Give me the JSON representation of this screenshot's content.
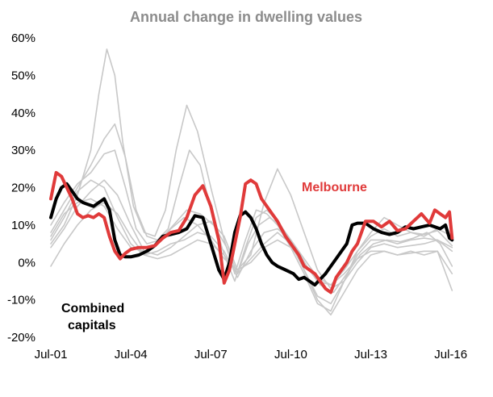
{
  "chart_data": {
    "type": "line",
    "title": "Annual change in dwelling values",
    "xlabel": "",
    "ylabel": "",
    "x_tick_labels": [
      "Jul-01",
      "Jul-04",
      "Jul-07",
      "Jul-10",
      "Jul-13",
      "Jul-16"
    ],
    "y_tick_labels": [
      "60%",
      "50%",
      "40%",
      "30%",
      "20%",
      "10%",
      "0%",
      "-10%",
      "-20%"
    ],
    "y_ticks": [
      60,
      50,
      40,
      30,
      20,
      10,
      0,
      -10,
      -20
    ],
    "xlim": [
      2001.5,
      2016.6
    ],
    "ylim": [
      -20,
      60
    ],
    "grid": false,
    "annotations": {
      "melbourne": "Melbourne",
      "combined_line1": "Combined",
      "combined_line2": "capitals"
    },
    "colors": {
      "melbourne": "#e03a3a",
      "combined": "#000000",
      "other": "#c8c8c8",
      "title": "#8c8c8c"
    },
    "series": [
      {
        "name": "Melbourne",
        "highlight": "melbourne",
        "x": [
          2001.5,
          2001.7,
          2001.9,
          2002.1,
          2002.3,
          2002.5,
          2002.7,
          2002.9,
          2003.1,
          2003.3,
          2003.5,
          2003.7,
          2003.9,
          2004.1,
          2004.3,
          2004.5,
          2004.8,
          2005.1,
          2005.4,
          2005.7,
          2006.0,
          2006.3,
          2006.6,
          2006.9,
          2007.2,
          2007.5,
          2007.8,
          2008.0,
          2008.2,
          2008.4,
          2008.6,
          2008.8,
          2009.0,
          2009.2,
          2009.4,
          2009.6,
          2009.8,
          2010.0,
          2010.3,
          2010.6,
          2010.8,
          2011.0,
          2011.2,
          2011.4,
          2011.6,
          2011.8,
          2012.0,
          2012.2,
          2012.4,
          2012.6,
          2012.8,
          2013.0,
          2013.3,
          2013.6,
          2013.9,
          2014.2,
          2014.5,
          2014.8,
          2015.1,
          2015.4,
          2015.7,
          2015.9,
          2016.1,
          2016.3,
          2016.45,
          2016.55
        ],
        "y": [
          17,
          24,
          23,
          20,
          17,
          13,
          12,
          12.5,
          12,
          13,
          12,
          7,
          3,
          1,
          2.5,
          3.5,
          4,
          4,
          4.5,
          6.5,
          8,
          8.5,
          12,
          18,
          20.5,
          15,
          6,
          -5.5,
          -2,
          5,
          12,
          21,
          22,
          21,
          17,
          15,
          13,
          11,
          7,
          4,
          2,
          -1,
          -2,
          -3,
          -5,
          -7,
          -8,
          -4,
          -2,
          0,
          3,
          5,
          11,
          11,
          9.5,
          11,
          8.5,
          9,
          11,
          13,
          10.5,
          14,
          13,
          12,
          13.5,
          6.5
        ]
      },
      {
        "name": "Combined capitals",
        "highlight": "combined",
        "x": [
          2001.5,
          2001.7,
          2001.9,
          2002.1,
          2002.3,
          2002.5,
          2002.7,
          2002.9,
          2003.1,
          2003.3,
          2003.5,
          2003.7,
          2003.9,
          2004.1,
          2004.3,
          2004.5,
          2004.8,
          2005.1,
          2005.4,
          2005.7,
          2006.0,
          2006.3,
          2006.6,
          2006.9,
          2007.2,
          2007.5,
          2007.8,
          2008.0,
          2008.2,
          2008.4,
          2008.6,
          2008.8,
          2009.0,
          2009.2,
          2009.4,
          2009.6,
          2009.8,
          2010.0,
          2010.3,
          2010.6,
          2010.8,
          2011.0,
          2011.2,
          2011.4,
          2011.6,
          2011.8,
          2012.0,
          2012.2,
          2012.4,
          2012.6,
          2012.8,
          2013.0,
          2013.3,
          2013.6,
          2013.9,
          2014.2,
          2014.5,
          2014.8,
          2015.1,
          2015.4,
          2015.7,
          2015.9,
          2016.1,
          2016.3,
          2016.45,
          2016.55
        ],
        "y": [
          12,
          17,
          20,
          21,
          19,
          17,
          16,
          15.5,
          15,
          16,
          17,
          14,
          6,
          2,
          1.5,
          1.5,
          2,
          3,
          4.5,
          7,
          7.5,
          8,
          9,
          12.5,
          12,
          5,
          -2,
          -4.5,
          0,
          8,
          12.5,
          13.5,
          12,
          9,
          5,
          2,
          0,
          -1,
          -2,
          -3,
          -4.5,
          -4,
          -5,
          -6,
          -4.5,
          -3,
          -1,
          1,
          3,
          5,
          10,
          10.5,
          10.5,
          9,
          8,
          7.5,
          8,
          9.5,
          9,
          9.5,
          10,
          9.5,
          9,
          10,
          6.5,
          6
        ]
      },
      {
        "name": "",
        "highlight": "other",
        "x": [
          2001.5,
          2002.0,
          2002.5,
          2003.0,
          2003.3,
          2003.6,
          2003.9,
          2004.2,
          2004.6,
          2005.0,
          2005.4,
          2005.8,
          2006.2,
          2006.6,
          2007.0,
          2007.5,
          2008.0,
          2008.4,
          2008.8,
          2009.2,
          2009.6,
          2010.0,
          2010.5,
          2011.0,
          2011.5,
          2012.0,
          2012.5,
          2013.0,
          2013.5,
          2014.0,
          2014.5,
          2015.0,
          2015.5,
          2016.0,
          2016.55
        ],
        "y": [
          5,
          10,
          18,
          30,
          45,
          57,
          50,
          32,
          15,
          8,
          7,
          14,
          30,
          42,
          35,
          20,
          6,
          -3,
          6,
          14,
          13,
          10,
          4,
          -3,
          -11,
          -13,
          -5,
          3,
          7,
          9,
          7,
          8,
          7.5,
          8.5,
          4.5
        ]
      },
      {
        "name": "",
        "highlight": "other",
        "x": [
          2001.5,
          2002.0,
          2002.5,
          2003.0,
          2003.5,
          2003.9,
          2004.3,
          2004.7,
          2005.1,
          2005.5,
          2005.9,
          2006.3,
          2006.7,
          2007.1,
          2007.5,
          2008.0,
          2008.4,
          2008.8,
          2009.2,
          2009.6,
          2010.0,
          2010.5,
          2011.0,
          2011.5,
          2012.0,
          2012.5,
          2013.0,
          2013.5,
          2014.0,
          2014.5,
          2015.0,
          2015.5,
          2016.0,
          2016.55
        ],
        "y": [
          8,
          14,
          20,
          26,
          33,
          37,
          28,
          14,
          7,
          6,
          9,
          20,
          30,
          26,
          14,
          2,
          -5,
          4,
          12,
          14,
          11,
          6,
          -2,
          -9,
          -11,
          -5,
          2,
          6,
          6,
          5,
          6,
          6.5,
          6,
          4
        ]
      },
      {
        "name": "",
        "highlight": "other",
        "x": [
          2001.5,
          2002.0,
          2002.5,
          2003.0,
          2003.5,
          2003.9,
          2004.3,
          2004.7,
          2005.1,
          2005.6,
          2006.1,
          2006.6,
          2007.1,
          2007.6,
          2008.1,
          2008.5,
          2008.9,
          2009.3,
          2009.7,
          2010.1,
          2010.6,
          2011.1,
          2011.6,
          2012.1,
          2012.6,
          2013.1,
          2013.6,
          2014.1,
          2014.6,
          2015.1,
          2015.6,
          2016.1,
          2016.55
        ],
        "y": [
          10,
          16,
          21,
          24,
          29,
          30,
          20,
          9,
          5,
          6,
          10,
          14,
          13,
          10,
          4,
          -3,
          5,
          10,
          12,
          10,
          5,
          -1,
          -6,
          -8,
          -3,
          2,
          5,
          6,
          5.5,
          6.5,
          8,
          5,
          -1
        ]
      },
      {
        "name": "",
        "highlight": "other",
        "x": [
          2001.5,
          2002.0,
          2002.5,
          2003.0,
          2003.5,
          2004.0,
          2004.5,
          2005.0,
          2005.5,
          2006.0,
          2006.5,
          2007.0,
          2007.5,
          2008.0,
          2008.5,
          2009.0,
          2009.5,
          2010.0,
          2010.5,
          2011.0,
          2011.5,
          2012.0,
          2012.5,
          2013.0,
          2013.5,
          2014.0,
          2014.5,
          2015.0,
          2015.5,
          2016.0,
          2016.55
        ],
        "y": [
          6,
          12,
          19,
          22,
          20,
          12,
          5,
          2,
          3,
          5,
          6,
          8,
          7,
          3,
          -4,
          3,
          8,
          9,
          6,
          1,
          -4,
          -6,
          -3,
          1,
          3,
          3,
          2,
          3,
          2,
          3,
          -7.5
        ]
      },
      {
        "name": "",
        "highlight": "other",
        "x": [
          2001.5,
          2002.0,
          2002.5,
          2003.0,
          2003.5,
          2004.0,
          2004.5,
          2005.0,
          2005.5,
          2006.0,
          2006.5,
          2007.0,
          2007.5,
          2008.0,
          2008.5,
          2009.0,
          2009.5,
          2010.0,
          2010.5,
          2011.0,
          2011.5,
          2012.0,
          2012.5,
          2013.0,
          2013.5,
          2014.0,
          2014.5,
          2015.0,
          2015.5,
          2016.0,
          2016.55
        ],
        "y": [
          4,
          9,
          15,
          19,
          22,
          18,
          10,
          3,
          2,
          4,
          7,
          10,
          11,
          7,
          -2,
          2,
          16,
          25,
          18,
          8,
          -2,
          -7,
          -5,
          0,
          4,
          5,
          4,
          4.5,
          5,
          6,
          3
        ]
      },
      {
        "name": "",
        "highlight": "other",
        "x": [
          2001.5,
          2002.0,
          2002.5,
          2003.0,
          2003.5,
          2004.0,
          2004.5,
          2005.0,
          2005.5,
          2006.0,
          2006.5,
          2007.0,
          2007.5,
          2008.0,
          2008.5,
          2009.0,
          2009.5,
          2010.0,
          2010.5,
          2011.0,
          2011.5,
          2012.0,
          2012.5,
          2013.0,
          2013.5,
          2014.0,
          2014.5,
          2015.0,
          2015.5,
          2016.0,
          2016.55
        ],
        "y": [
          -1,
          5,
          10,
          14,
          16,
          13,
          7,
          2,
          1,
          2,
          4,
          6,
          5,
          2,
          -3,
          1,
          5,
          8,
          5,
          -2,
          -10,
          -14,
          -8,
          -2,
          2,
          3,
          2,
          2.5,
          3,
          3,
          -3
        ]
      },
      {
        "name": "",
        "highlight": "other",
        "x": [
          2001.5,
          2002.0,
          2002.5,
          2003.0,
          2003.5,
          2004.0,
          2004.5,
          2005.0,
          2005.5,
          2006.0,
          2006.5,
          2007.0,
          2007.5,
          2008.0,
          2008.5,
          2009.0,
          2009.5,
          2010.0,
          2010.5,
          2011.0,
          2011.5,
          2012.0,
          2012.5,
          2013.0,
          2013.5,
          2014.0,
          2014.5,
          2015.0,
          2015.5,
          2016.0,
          2016.55
        ],
        "y": [
          7,
          13,
          16,
          17,
          15,
          9,
          4,
          3,
          5,
          9,
          12,
          10,
          6,
          1,
          -2,
          0,
          4,
          6,
          4,
          0,
          -5,
          -6,
          -2,
          3,
          8,
          12,
          10,
          8,
          7,
          9,
          7
        ]
      }
    ]
  }
}
